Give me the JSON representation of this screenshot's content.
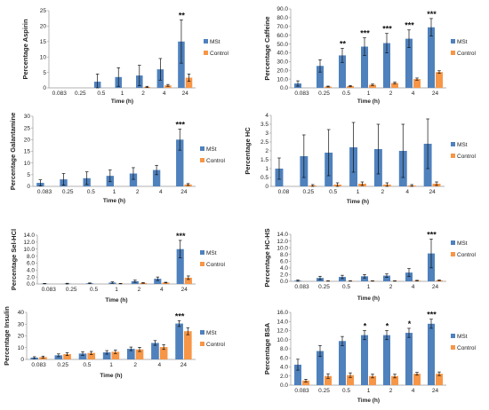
{
  "colors": {
    "MSt": "#4f81bd",
    "Control": "#f79646"
  },
  "chart_data": [
    {
      "type": "bar",
      "categories": [
        "0.083",
        "0.25",
        "0.5",
        "1",
        "2",
        "4",
        "24"
      ],
      "xlabel": "Time (h)",
      "ylabel": "Percentage Aspirin",
      "ylim": [
        0,
        25
      ],
      "yticks": [
        "0",
        "5",
        "10",
        "15",
        "20",
        "25"
      ],
      "legend_position": "right",
      "series": [
        {
          "name": "MSt",
          "values": [
            0,
            0,
            2.0,
            3.5,
            4.0,
            6.0,
            15.0
          ],
          "errors": [
            0,
            0,
            2.5,
            3.0,
            3.3,
            3.5,
            7.0
          ]
        },
        {
          "name": "Control",
          "values": [
            0,
            0,
            0,
            0,
            0.3,
            0.8,
            3.3
          ],
          "errors": [
            0,
            0,
            0,
            0,
            0.2,
            0.3,
            1.2
          ]
        }
      ],
      "annotations": [
        "",
        "",
        "",
        "",
        "",
        "",
        "**"
      ]
    },
    {
      "type": "bar",
      "categories": [
        "0.083",
        "0.25",
        "0.5",
        "1",
        "2",
        "4",
        "24"
      ],
      "xlabel": "Time (h)",
      "ylabel": "Percentage Caffeine",
      "ylim": [
        0,
        90
      ],
      "yticks": [
        "0.0",
        "10.0",
        "20.0",
        "30.0",
        "40.0",
        "50.0",
        "60.0",
        "70.0",
        "80.0",
        "90.0"
      ],
      "legend_position": "right",
      "series": [
        {
          "name": "MSt",
          "values": [
            5.0,
            25.0,
            37.0,
            47.0,
            51.0,
            56.0,
            69.0
          ],
          "errors": [
            3.0,
            7.0,
            8.0,
            10.0,
            11.0,
            10.0,
            10.0
          ]
        },
        {
          "name": "Control",
          "values": [
            0,
            1.5,
            2.0,
            3.5,
            5.5,
            10.0,
            18.0
          ],
          "errors": [
            0,
            0.5,
            0.7,
            0.8,
            1.0,
            1.2,
            1.5
          ]
        }
      ],
      "annotations": [
        "",
        "",
        "**",
        "***",
        "***",
        "***",
        "***"
      ]
    },
    {
      "type": "bar",
      "categories": [
        "0.083",
        "0.25",
        "0.5",
        "1",
        "2",
        "4",
        "24"
      ],
      "xlabel": "Time (h)",
      "ylabel": "Percentage Galantamine",
      "ylim": [
        0,
        30
      ],
      "yticks": [
        "0",
        "5",
        "10",
        "15",
        "20",
        "25",
        "30"
      ],
      "legend_position": "right",
      "series": [
        {
          "name": "MSt",
          "values": [
            1.5,
            3.0,
            3.5,
            4.5,
            5.5,
            7.0,
            20.0
          ],
          "errors": [
            1.3,
            2.5,
            2.7,
            2.5,
            2.5,
            2.0,
            4.5
          ]
        },
        {
          "name": "Control",
          "values": [
            0,
            0,
            0,
            0,
            0,
            0,
            0.8
          ],
          "errors": [
            0,
            0,
            0,
            0,
            0,
            0,
            0.4
          ]
        }
      ],
      "annotations": [
        "",
        "",
        "",
        "",
        "",
        "",
        "***"
      ]
    },
    {
      "type": "bar",
      "categories": [
        "0.08",
        "0.25",
        "0.5",
        "1",
        "2",
        "4",
        "24"
      ],
      "xlabel": "Time (h)",
      "ylabel": "Percentage HC",
      "ylim": [
        0,
        4
      ],
      "yticks": [
        "0",
        "0.5",
        "1",
        "1.5",
        "2",
        "2.5",
        "3",
        "3.5",
        "4"
      ],
      "legend_position": "right",
      "series": [
        {
          "name": "MSt",
          "values": [
            1.0,
            1.7,
            1.9,
            2.2,
            2.1,
            2.0,
            2.4
          ],
          "errors": [
            0.6,
            1.2,
            1.3,
            1.4,
            1.4,
            1.5,
            1.4
          ]
        },
        {
          "name": "Control",
          "values": [
            0,
            0.05,
            0.1,
            0.15,
            0.1,
            0.05,
            0.15
          ],
          "errors": [
            0,
            0.05,
            0.1,
            0.1,
            0.1,
            0.05,
            0.1
          ]
        }
      ],
      "annotations": [
        "",
        "",
        "",
        "",
        "",
        "",
        ""
      ]
    },
    {
      "type": "bar",
      "categories": [
        "0.083",
        "0.25",
        "0.5",
        "1",
        "2",
        "4",
        "24"
      ],
      "xlabel": "Time (h)",
      "ylabel": "Percentage Sel-HCl",
      "ylim": [
        0,
        14
      ],
      "yticks": [
        "0.0",
        "2.0",
        "4.0",
        "6.0",
        "8.0",
        "10.0",
        "12.0",
        "14.0"
      ],
      "legend_position": "right",
      "series": [
        {
          "name": "MSt",
          "values": [
            0.1,
            0.1,
            0.2,
            0.4,
            0.8,
            1.5,
            10.0
          ],
          "errors": [
            0.05,
            0.1,
            0.1,
            0.2,
            0.3,
            0.5,
            2.5
          ]
        },
        {
          "name": "Control",
          "values": [
            0,
            0,
            0,
            0.1,
            0.3,
            0.4,
            1.8
          ],
          "errors": [
            0,
            0,
            0,
            0.05,
            0.1,
            0.1,
            0.5
          ]
        }
      ],
      "annotations": [
        "",
        "",
        "",
        "",
        "",
        "",
        "***"
      ]
    },
    {
      "type": "bar",
      "categories": [
        "0.083",
        "0.25",
        "0.5",
        "1",
        "2",
        "4",
        "24"
      ],
      "xlabel": "Time (h)",
      "ylabel": "Percentage HC-HS",
      "ylim": [
        0,
        14
      ],
      "yticks": [
        "0.0",
        "2.0",
        "4.0",
        "6.0",
        "8.0",
        "10.0",
        "12.0",
        "14.0"
      ],
      "legend_position": "right",
      "series": [
        {
          "name": "MSt",
          "values": [
            0.2,
            1.0,
            1.3,
            1.5,
            1.7,
            2.6,
            8.3
          ],
          "errors": [
            0.2,
            0.5,
            0.5,
            0.5,
            0.5,
            1.2,
            4.3
          ]
        },
        {
          "name": "Control",
          "values": [
            0,
            0.1,
            0.1,
            0.1,
            0.1,
            0.2,
            0.3
          ],
          "errors": [
            0,
            0.05,
            0.05,
            0.05,
            0.05,
            0.1,
            0.1
          ]
        }
      ],
      "annotations": [
        "",
        "",
        "",
        "",
        "",
        "",
        "***"
      ]
    },
    {
      "type": "bar",
      "categories": [
        "0.083",
        "0.25",
        "0.5",
        "1",
        "2",
        "4",
        "24"
      ],
      "xlabel": "Time (h)",
      "ylabel": "Percentage Insulin",
      "ylim": [
        0,
        40
      ],
      "yticks": [
        "0",
        "10",
        "20",
        "30",
        "40"
      ],
      "legend_position": "right",
      "series": [
        {
          "name": "MSt",
          "values": [
            1.5,
            3.5,
            5.0,
            6.0,
            9.0,
            14.0,
            30.5
          ],
          "errors": [
            0.8,
            1.2,
            1.5,
            1.5,
            1.5,
            2.0,
            2.5
          ]
        },
        {
          "name": "Control",
          "values": [
            2.0,
            4.5,
            5.5,
            6.5,
            8.5,
            10.5,
            24.0
          ],
          "errors": [
            0.8,
            1.2,
            1.3,
            1.5,
            1.8,
            2.0,
            3.0
          ]
        }
      ],
      "annotations": [
        "",
        "",
        "",
        "",
        "",
        "",
        "***"
      ]
    },
    {
      "type": "bar",
      "categories": [
        "0.083",
        "0.25",
        "0.5",
        "1",
        "2",
        "4",
        "24"
      ],
      "xlabel": "Time (h)",
      "ylabel": "Percentage BSA",
      "ylim": [
        0,
        16
      ],
      "yticks": [
        "0.0",
        "2.0",
        "4.0",
        "6.0",
        "8.0",
        "10.0",
        "12.0",
        "14.0",
        "16.0"
      ],
      "legend_position": "right",
      "series": [
        {
          "name": "MSt",
          "values": [
            4.5,
            7.5,
            9.7,
            11.0,
            11.0,
            11.5,
            13.5
          ],
          "errors": [
            1.2,
            1.2,
            1.0,
            1.0,
            1.0,
            1.0,
            1.0
          ]
        },
        {
          "name": "Control",
          "values": [
            1.0,
            2.0,
            2.2,
            2.0,
            2.0,
            2.5,
            2.5
          ],
          "errors": [
            0.3,
            0.5,
            0.5,
            0.4,
            0.4,
            0.3,
            0.4
          ]
        }
      ],
      "annotations": [
        "",
        "",
        "",
        "*",
        "*",
        "*",
        "***"
      ]
    }
  ]
}
